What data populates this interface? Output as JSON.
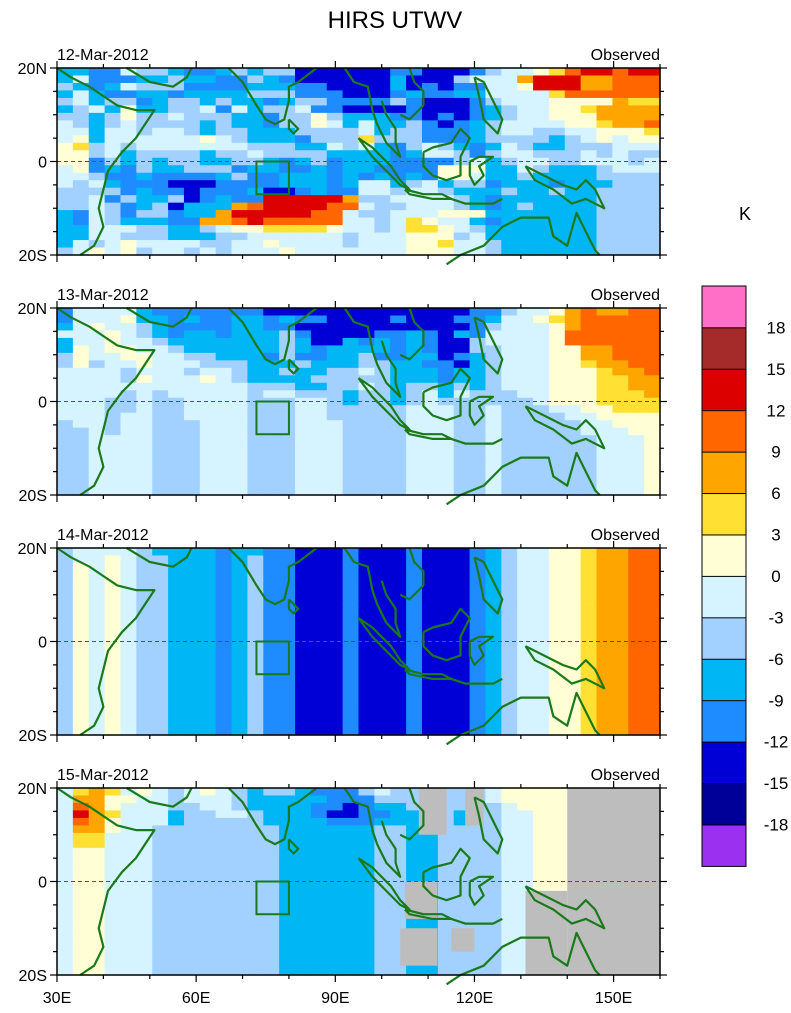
{
  "chart_data": {
    "type": "heatmap",
    "title": "HIRS UTWV",
    "units": "K",
    "x_ticks": [
      {
        "value": 30,
        "label": "30E"
      },
      {
        "value": 60,
        "label": "60E"
      },
      {
        "value": 90,
        "label": "90E"
      },
      {
        "value": 120,
        "label": "120E"
      },
      {
        "value": 150,
        "label": "150E"
      }
    ],
    "y_ticks": [
      {
        "value": 20,
        "label": "20N"
      },
      {
        "value": 0,
        "label": "0"
      },
      {
        "value": -20,
        "label": "20S"
      }
    ],
    "xlim": [
      30,
      160
    ],
    "ylim": [
      -20,
      20
    ],
    "colorbar": {
      "levels": [
        -18,
        -15,
        -12,
        -9,
        -6,
        -3,
        0,
        3,
        6,
        9,
        12,
        15,
        18
      ],
      "labels": [
        "-18",
        "-15",
        "-12",
        "-9",
        "-6",
        "-3",
        "0",
        "3",
        "6",
        "9",
        "12",
        "15",
        "18"
      ],
      "colors": [
        "#9b30f0",
        "#000099",
        "#0000d6",
        "#1e8cff",
        "#00b6f5",
        "#a3d1ff",
        "#d5f4ff",
        "#fffed4",
        "#ffe033",
        "#ffa500",
        "#ff6600",
        "#dd0000",
        "#a52a2a",
        "#ff6ec7"
      ]
    },
    "missing_color": "#bdbdbd",
    "coast_color": "#1a7a1a",
    "panels": [
      {
        "date": "12-Mar-2012",
        "label": "Observed",
        "grid": [
          "22114332112323300000011000134456899899",
          "24111223221132100000020003444799977888",
          "32124333111122211000020101144599977888",
          "24211221222233311100012112244446888888",
          "34233123323221233111131000134445555766",
          "23425223341423341100001000123445567777",
          "33235334333221335322211010123445557777",
          "43234333323221335424223101234444556778",
          "44244344323322233334233111234433445556",
          "45244444454322213336333111233332345455",
          "56343444444433322434213432124322333444",
          "55342333323343333222212443134433343433",
          "55132323322332123122211113423443344434",
          "45121322333122112122111155522432223444",
          "44311211112311222121212155422322223333",
          "43421110001111222124423423312221222333",
          "33331211011120012114434432223223223333",
          "33413223012119999973344443212222223333",
          "33431230222789999884334443212322223333",
          "21431331227999998843344455522222223333",
          "21432221177898888844346544212222223333",
          "22444332234556666544346654322222223333",
          "22443332223344444434445553422222223333",
          "24345444433445444434445564432222223333",
          "34545344343444544444445554432222223333"
        ],
        "missing": []
      },
      {
        "date": "13-Mar-2012",
        "label": "Observed",
        "grid": [
          "14444211111110000000000000113445787788",
          "14445221211221211000010001124456788888",
          "24544321111221100000000000134445788888",
          "44454321221222310000112102144445888888",
          "24454432222222320021212100344445888888",
          "25455443222222321222212100334445577888",
          "35445544332221311223112201234445577888",
          "35344544433322232223322110234445567788",
          "44443444344322322334322212234445556778",
          "44443544454322223333322212234445556677",
          "44444444444433322334323323234445556677",
          "44443434444434433323323424333445556667",
          "44433433444433344323323433333345556666",
          "44433433444433344333334443343334455666",
          "44434433444433344333334443343333445555",
          "34434433344433344433334443343333344555",
          "33434433344433344433334443343333344455",
          "33444433344433344433334443343333334445",
          "33444433344433344433334443343333334445",
          "33444433344433344433334443343333334445",
          "33444433344433344433334443343333334445",
          "33444433344433344433334443343333334445",
          "33444433344433344433334443343333334445",
          "33444433344433344433334443343333334445",
          "33444433344433344433334443343333334445"
        ],
        "missing": []
      },
      {
        "date": "14-Mar-2012",
        "label": "Observed",
        "grid": [
          "34444322221221100010001000123445567788",
          "34454332221231100010001000123445567788",
          "35454332221231100010001000123445567788",
          "35454332221231100010001000123445567788",
          "35454332221231100010001000123445567788",
          "35454332221231100010001000123445567788",
          "35454332221231100010001000123445567788",
          "35454332221231100010001000123445567788",
          "35454332221231100010001000123445567788",
          "35454332221231100010001000123445567788",
          "35454332221231100010001000123445567788",
          "35454332221231100010001000123445567788",
          "35454332221231100010001000123445567788",
          "35454332221231100010001000123445567788",
          "35454332221231100010001000123445567788",
          "35454332221231100010001000123445567788",
          "35454332221231100010001000123445567788",
          "35454332221231100010001000123445567788",
          "35454332221231100010001000123445567788",
          "35454332221231100010001000123445567788",
          "35454332221231100010001000123445567788",
          "35454332221231100010001000123445567788",
          "35454332221231100010001000123445567788",
          "35454332221231100010001000123445567788",
          "35454332221231100010001000123445567788"
        ],
        "missing": []
      },
      {
        "date": "15-Mar-2012",
        "label": "Observed",
        "grid": [
          "46764543454323321113433233345555555555",
          "47755443444322222111333233345555555555",
          "48754443344322221101223233334555555555",
          "49764442334432221001122232334455555555",
          "48754442333332222111222232334455555555",
          "47754433333333222222332233334455555555",
          "46644433333333222222332233334455555555",
          "46644433333333222222332233334455555555",
          "45544433333333222222332233334455555555",
          "45544433333333222222332233334455555555",
          "45544433333333222222332233334455555555",
          "45544433333333222222332233334455555555",
          "45544433333333222222332233334455555555",
          "45544433333333222222332233334455555555",
          "45544433333333222222332233334455555555",
          "45544433333333222222332233334455555555",
          "45544433333333222222332233334455555555",
          "45544433333333222222332233334455555555",
          "45544433333333222222332233334455555555",
          "45544433333333222222332233334455555555",
          "45544433333333222222332233334455555555",
          "45544433333333222222332233334455555555",
          "45544433333333222222332233334455555555",
          "45544433333333222222332233334455555555",
          "45544433333333222222332233334455555555"
        ],
        "missing": [
          {
            "lon0": 108,
            "lon1": 114,
            "lat0": 10,
            "lat1": 20
          },
          {
            "lon0": 105,
            "lon1": 112,
            "lat0": -8,
            "lat1": 0
          },
          {
            "lon0": 104,
            "lon1": 112,
            "lat0": -18,
            "lat1": -10
          },
          {
            "lon0": 115,
            "lon1": 120,
            "lat0": -15,
            "lat1": -10
          },
          {
            "lon0": 118,
            "lon1": 122,
            "lat0": 12,
            "lat1": 20
          },
          {
            "lon0": 131,
            "lon1": 140,
            "lat0": -20,
            "lat1": -2
          },
          {
            "lon0": 140,
            "lon1": 160,
            "lat0": -20,
            "lat1": 20
          }
        ]
      }
    ]
  }
}
